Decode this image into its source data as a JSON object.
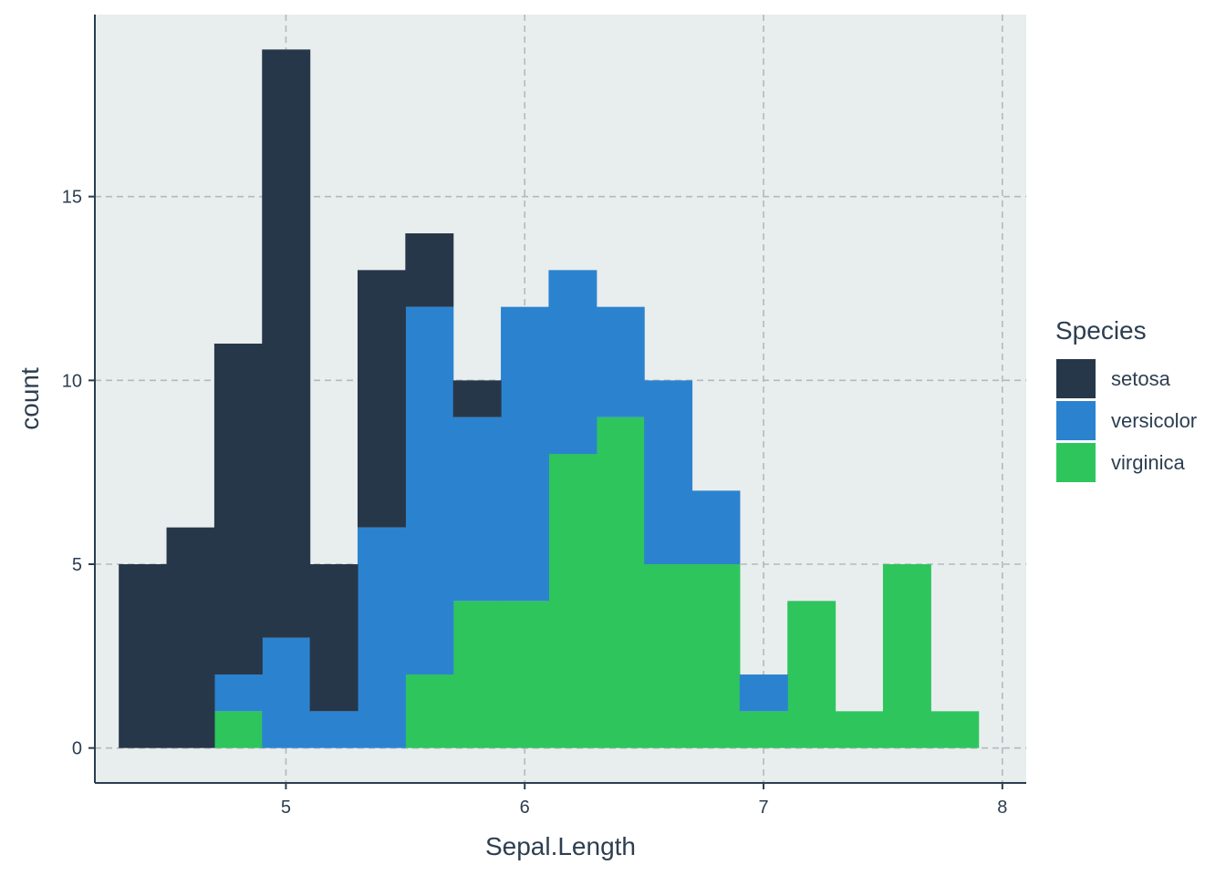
{
  "chart_data": {
    "type": "bar",
    "subtype": "stacked-histogram",
    "title": "",
    "xlabel": "Sepal.Length",
    "ylabel": "count",
    "xlim": [
      4.2,
      8.1
    ],
    "ylim": [
      -0.95,
      19.95
    ],
    "x_ticks": [
      5,
      6,
      7,
      8
    ],
    "x_tick_labels": [
      "5",
      "6",
      "7",
      "8"
    ],
    "y_ticks": [
      0,
      5,
      10,
      15
    ],
    "y_tick_labels": [
      "0",
      "5",
      "10",
      "15"
    ],
    "grid": true,
    "bins": [
      [
        4.3,
        4.5
      ],
      [
        4.5,
        4.7
      ],
      [
        4.7,
        4.9
      ],
      [
        4.9,
        5.1
      ],
      [
        5.1,
        5.3
      ],
      [
        5.3,
        5.5
      ],
      [
        5.5,
        5.7
      ],
      [
        5.7,
        5.9
      ],
      [
        5.9,
        6.1
      ],
      [
        6.1,
        6.3
      ],
      [
        6.3,
        6.5
      ],
      [
        6.5,
        6.7
      ],
      [
        6.7,
        6.9
      ],
      [
        6.9,
        7.1
      ],
      [
        7.1,
        7.3
      ],
      [
        7.3,
        7.5
      ],
      [
        7.5,
        7.7
      ],
      [
        7.7,
        7.9
      ]
    ],
    "series": [
      {
        "name": "virginica",
        "color": "#2ec55d",
        "values": [
          0,
          0,
          1,
          0,
          0,
          0,
          2,
          4,
          4,
          8,
          9,
          5,
          5,
          1,
          4,
          1,
          5,
          1
        ]
      },
      {
        "name": "versicolor",
        "color": "#2b83d0",
        "values": [
          0,
          0,
          1,
          3,
          1,
          6,
          10,
          5,
          8,
          5,
          3,
          5,
          2,
          1,
          0,
          0,
          0,
          0
        ]
      },
      {
        "name": "setosa",
        "color": "#27374a",
        "values": [
          5,
          6,
          9,
          16,
          4,
          7,
          2,
          1,
          0,
          0,
          0,
          0,
          0,
          0,
          0,
          0,
          0,
          0
        ]
      }
    ],
    "legend": {
      "title": "Species",
      "position": "right",
      "items": [
        {
          "label": "setosa",
          "color": "#27374a"
        },
        {
          "label": "versicolor",
          "color": "#2b83d0"
        },
        {
          "label": "virginica",
          "color": "#2ec55d"
        }
      ]
    },
    "colors": {
      "panel_background": "#e8eded",
      "grid": "#b5b9bc",
      "axis": "#2c3e50",
      "text": "#2c3e50"
    }
  }
}
